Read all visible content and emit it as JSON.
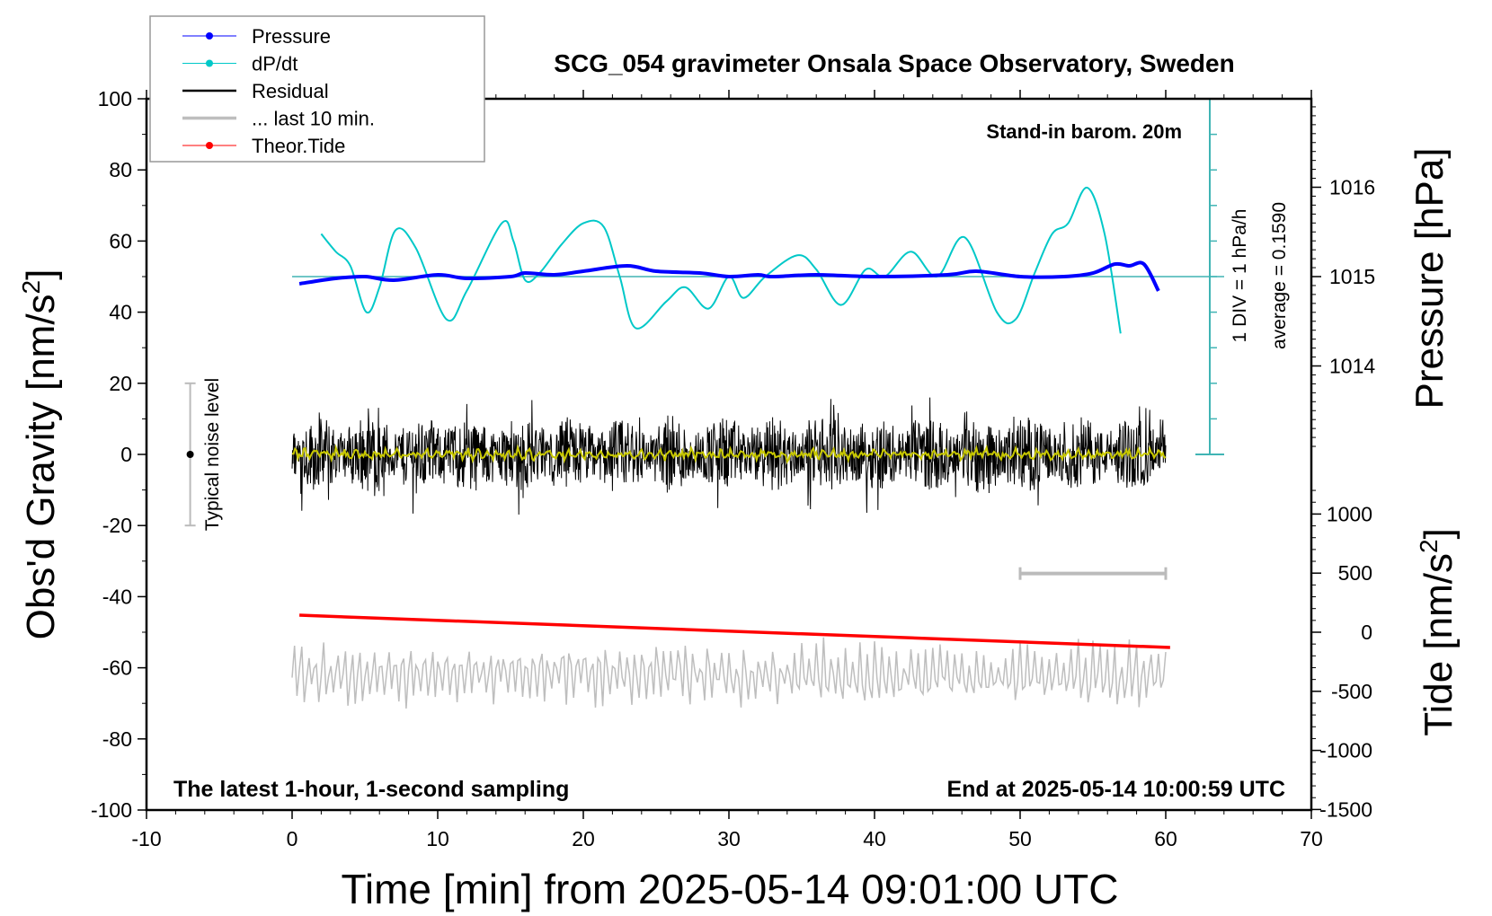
{
  "chart_data": {
    "type": "line",
    "title": "SCG_054 gravimeter Onsala Space Observatory, Sweden",
    "xlabel": "Time [min] from 2025-05-14 09:01:00 UTC",
    "ylabel_left": "Obs'd Gravity [nm/s",
    "ylabel_left_sup": "2",
    "ylabel_left_end": "]",
    "ylabel_right_pressure": "Pressure [hPa]",
    "ylabel_right_tide": "Tide [nm/s",
    "ylabel_right_tide_sup": "2",
    "ylabel_right_tide_end": "]",
    "xlim": [
      -10,
      70
    ],
    "ylim": [
      -100,
      100
    ],
    "x_ticks": [
      "-10",
      "0",
      "10",
      "20",
      "30",
      "40",
      "50",
      "60",
      "70"
    ],
    "y_ticks": [
      "100",
      "80",
      "60",
      "40",
      "20",
      "0",
      "-20",
      "-40",
      "-60",
      "-80",
      "-100"
    ],
    "pressure_ticks": [
      "1016",
      "1015",
      "1014"
    ],
    "tide_ticks": [
      "1000",
      "500",
      "0",
      "-500",
      "-1000",
      "-1500"
    ],
    "annotations": {
      "barometer": "Stand-in barom. 20m",
      "sampling": "The latest 1-hour, 1-second sampling",
      "end_time": "End at 2025-05-14 10:00:59 UTC",
      "div": "1 DIV = 1 hPa/h",
      "average": "average = 0.1590",
      "noise_label": "Typical noise level"
    },
    "legend": {
      "placement": "top-left",
      "entries": [
        {
          "label": "Pressure",
          "color": "#0000ff",
          "marker": true
        },
        {
          "label": "dP/dt",
          "color": "#00c8c8",
          "marker": true
        },
        {
          "label": "Residual",
          "color": "#000000",
          "marker": false
        },
        {
          "label": "... last 10 min.",
          "color": "#bebebe",
          "marker": false
        },
        {
          "label": "Theor.Tide",
          "color": "#ff0000",
          "marker": true
        }
      ]
    },
    "series": [
      {
        "name": "Pressure",
        "unit": "hPa",
        "color": "#0000ff",
        "x": [
          0.5,
          3,
          5,
          7,
          10,
          12,
          15,
          16,
          18,
          20,
          23,
          25,
          28,
          30,
          32,
          33,
          36,
          40,
          45,
          47,
          50,
          53,
          55,
          56.5,
          57.5,
          58.5,
          59.5
        ],
        "values": [
          1014.92,
          1014.98,
          1015.0,
          1014.96,
          1015.02,
          1014.98,
          1015.0,
          1015.04,
          1015.02,
          1015.06,
          1015.12,
          1015.06,
          1015.04,
          1015.0,
          1015.02,
          1015.0,
          1015.02,
          1015.0,
          1015.02,
          1015.06,
          1015.0,
          1015.0,
          1015.04,
          1015.14,
          1015.12,
          1015.14,
          1014.84
        ]
      },
      {
        "name": "dP/dt",
        "unit": "hPa/h",
        "color": "#00c8c8",
        "average": 0.159,
        "x": [
          2,
          3,
          4,
          5.1,
          6,
          7.1,
          8.5,
          10.6,
          12,
          14.4,
          15.2,
          16,
          17,
          18.5,
          20,
          21.4,
          22.5,
          23.6,
          25.7,
          27,
          28.6,
          30,
          31,
          32.5,
          34.7,
          36,
          37.7,
          39.4,
          40.7,
          42.5,
          44.3,
          46.2,
          48.4,
          49.7,
          51,
          52.2,
          53.3,
          54.6,
          55.8,
          56.9
        ],
        "values": [
          1.36,
          0.86,
          0.46,
          -0.84,
          -0.14,
          1.46,
          0.96,
          -1.04,
          -0.24,
          1.66,
          1.16,
          0.06,
          0.26,
          1.06,
          1.66,
          1.56,
          0.16,
          -1.29,
          -0.54,
          -0.14,
          -0.74,
          0.16,
          -0.44,
          0.16,
          0.76,
          0.36,
          -0.64,
          0.36,
          0.16,
          0.86,
          0.16,
          1.26,
          -0.84,
          -1.04,
          0.26,
          1.36,
          1.66,
          2.66,
          1.36,
          -1.44
        ]
      },
      {
        "name": "Residual",
        "unit": "nm/s2",
        "color": "#000000",
        "x_range": [
          0,
          60
        ],
        "mean": 0,
        "amplitude": 8
      },
      {
        "name": "Residual smoothed",
        "unit": "nm/s2",
        "color": "#c8c800",
        "x_range": [
          0,
          60
        ],
        "mean": 0,
        "amplitude": 1.5
      },
      {
        "name": "... last 10 min.",
        "unit": "nm/s2",
        "color": "#bebebe",
        "x_range": [
          0,
          60
        ],
        "mean": -62,
        "amplitude": 7
      },
      {
        "name": "Theor.Tide",
        "unit": "nm/s2",
        "color": "#ff0000",
        "x": [
          0.5,
          60.3
        ],
        "values": [
          144,
          -129
        ]
      }
    ],
    "noise_bar": {
      "x": -7,
      "range": [
        -20,
        20
      ],
      "center": 0
    },
    "last10_bar": {
      "x_range": [
        50,
        60
      ],
      "y": -33.5
    },
    "grid": false
  }
}
